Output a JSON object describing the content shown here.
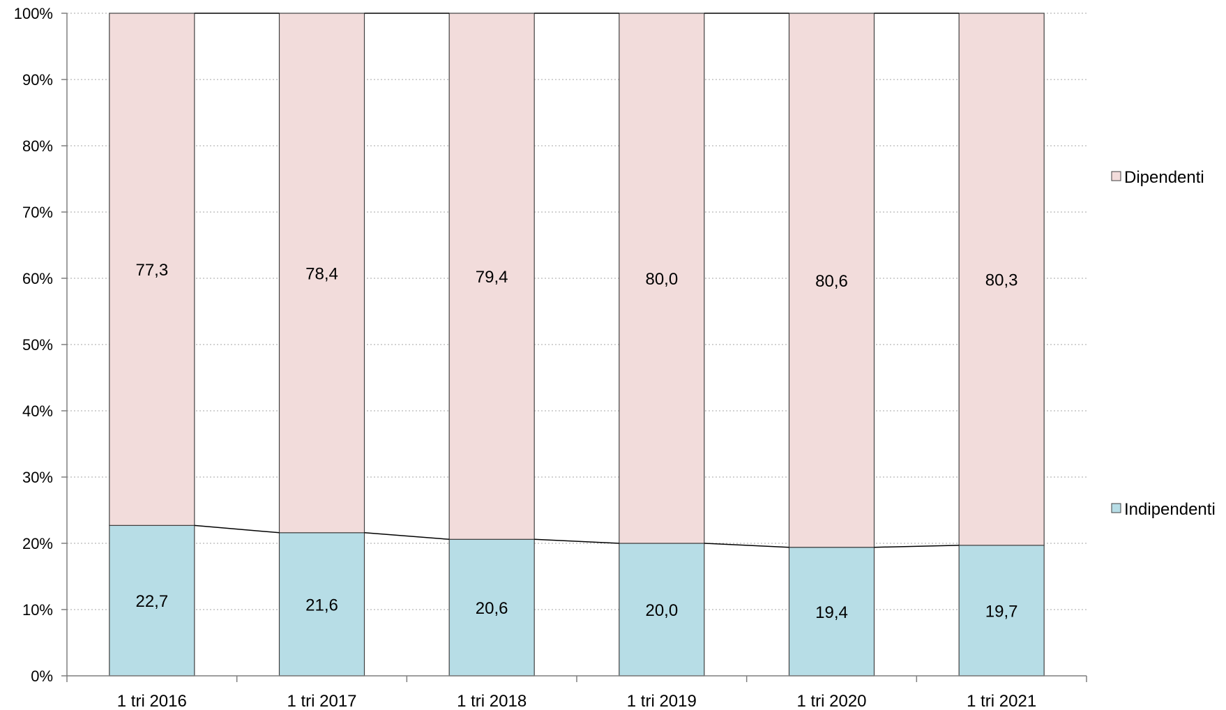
{
  "chart_data": {
    "type": "bar",
    "stacked": true,
    "normalized_percent": true,
    "categories": [
      "1 tri 2016",
      "1 tri 2017",
      "1 tri 2018",
      "1 tri 2019",
      "1 tri 2020",
      "1 tri 2021"
    ],
    "series": [
      {
        "name": "Indipendenti",
        "values": [
          22.7,
          21.6,
          20.6,
          20.0,
          19.4,
          19.7
        ],
        "labels": [
          "22,7",
          "21,6",
          "20,6",
          "20,0",
          "19,4",
          "19,7"
        ],
        "color": "#b7dde6"
      },
      {
        "name": "Dipendenti",
        "values": [
          77.3,
          78.4,
          79.4,
          80.0,
          80.6,
          80.3
        ],
        "labels": [
          "77,3",
          "78,4",
          "79,4",
          "80,0",
          "80,6",
          "80,3"
        ],
        "color": "#f2dcdb"
      }
    ],
    "y_ticks": [
      "0%",
      "10%",
      "20%",
      "30%",
      "40%",
      "50%",
      "60%",
      "70%",
      "80%",
      "90%",
      "100%"
    ],
    "ylim": [
      0,
      100
    ],
    "series_lines": true,
    "grid": "horizontal-dotted",
    "legend": "right",
    "colors": {
      "bar_outline": "#404040",
      "axis": "#7f7f7f",
      "grid": "#a6a6a6",
      "series_line": "#000000"
    }
  }
}
